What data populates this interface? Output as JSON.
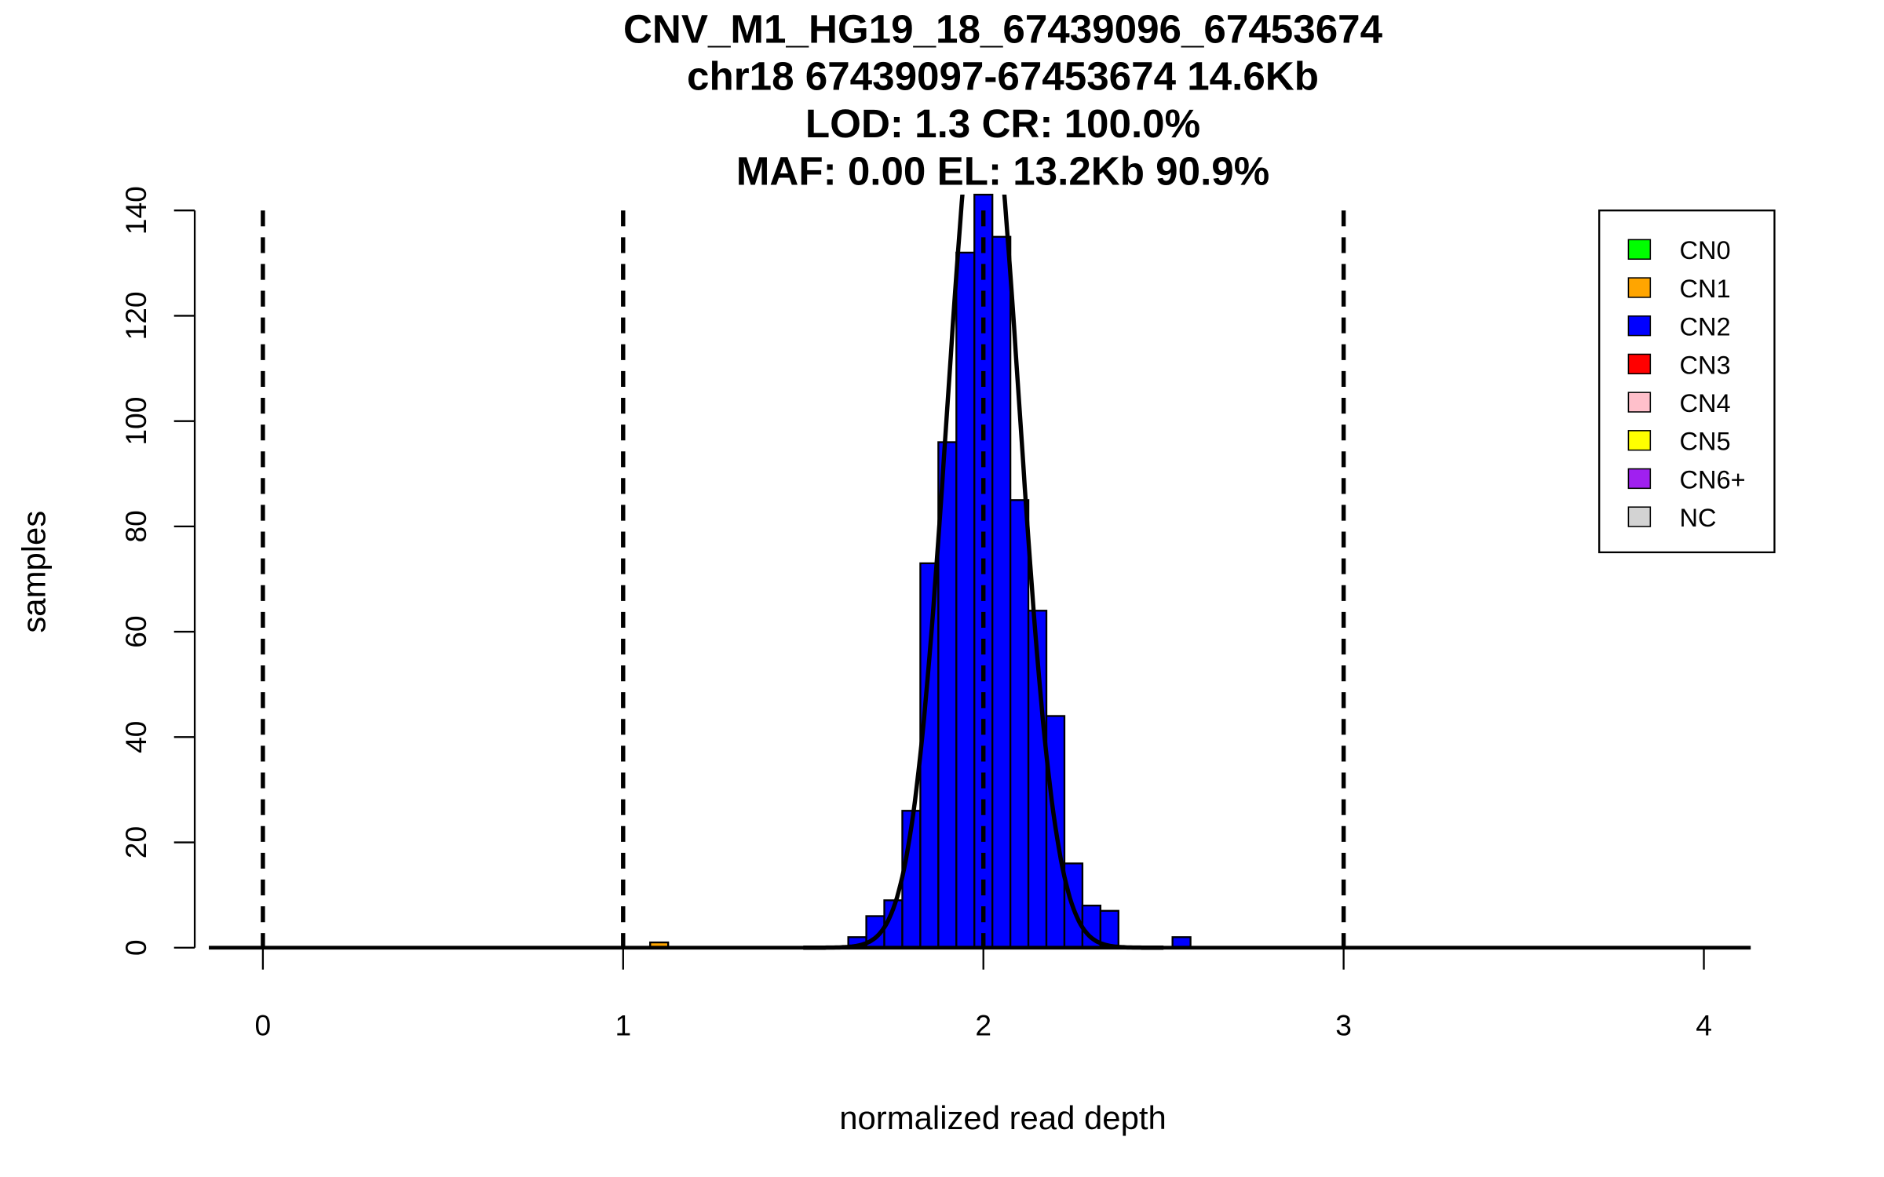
{
  "chart_data": {
    "type": "bar",
    "title": [
      "CNV_M1_HG19_18_67439096_67453674",
      "chr18 67439097-67453674 14.6Kb",
      "LOD: 1.3 CR: 100.0%",
      "MAF: 0.00 EL: 13.2Kb 90.9%"
    ],
    "xlabel": "normalized read depth",
    "ylabel": "samples",
    "xlim": [
      -0.15,
      4.13
    ],
    "ylim": [
      0,
      140
    ],
    "xticks": [
      "0",
      "1",
      "2",
      "3",
      "4"
    ],
    "yticks": [
      "0",
      "20",
      "40",
      "60",
      "80",
      "100",
      "120",
      "140"
    ],
    "bin_width": 0.05,
    "bins": [
      {
        "center": 1.1,
        "count": 1,
        "cn": "CN1"
      },
      {
        "center": 1.65,
        "count": 2,
        "cn": "CN2"
      },
      {
        "center": 1.7,
        "count": 6,
        "cn": "CN2"
      },
      {
        "center": 1.75,
        "count": 9,
        "cn": "CN2"
      },
      {
        "center": 1.8,
        "count": 26,
        "cn": "CN2"
      },
      {
        "center": 1.85,
        "count": 73,
        "cn": "CN2"
      },
      {
        "center": 1.9,
        "count": 96,
        "cn": "CN2"
      },
      {
        "center": 1.95,
        "count": 132,
        "cn": "CN2"
      },
      {
        "center": 2.0,
        "count": 143,
        "cn": "CN2"
      },
      {
        "center": 2.05,
        "count": 135,
        "cn": "CN2"
      },
      {
        "center": 2.1,
        "count": 85,
        "cn": "CN2"
      },
      {
        "center": 2.15,
        "count": 64,
        "cn": "CN2"
      },
      {
        "center": 2.2,
        "count": 44,
        "cn": "CN2"
      },
      {
        "center": 2.25,
        "count": 16,
        "cn": "CN2"
      },
      {
        "center": 2.3,
        "count": 8,
        "cn": "CN2"
      },
      {
        "center": 2.35,
        "count": 7,
        "cn": "CN2"
      },
      {
        "center": 2.55,
        "count": 2,
        "cn": "CN2"
      }
    ],
    "fit_curve": {
      "mean": 2.0,
      "sd": 0.1,
      "n": 849
    },
    "reference_lines": [
      0,
      1,
      2,
      3
    ],
    "legend": {
      "placement": "top-right",
      "entries": [
        {
          "label": "CN0",
          "color": "#00FF00"
        },
        {
          "label": "CN1",
          "color": "#FFA500"
        },
        {
          "label": "CN2",
          "color": "#0000FF"
        },
        {
          "label": "CN3",
          "color": "#FF0000"
        },
        {
          "label": "CN4",
          "color": "#FFC0CB"
        },
        {
          "label": "CN5",
          "color": "#FFFF00"
        },
        {
          "label": "CN6+",
          "color": "#A020F0"
        },
        {
          "label": "NC",
          "color": "#D3D3D3"
        }
      ]
    }
  }
}
